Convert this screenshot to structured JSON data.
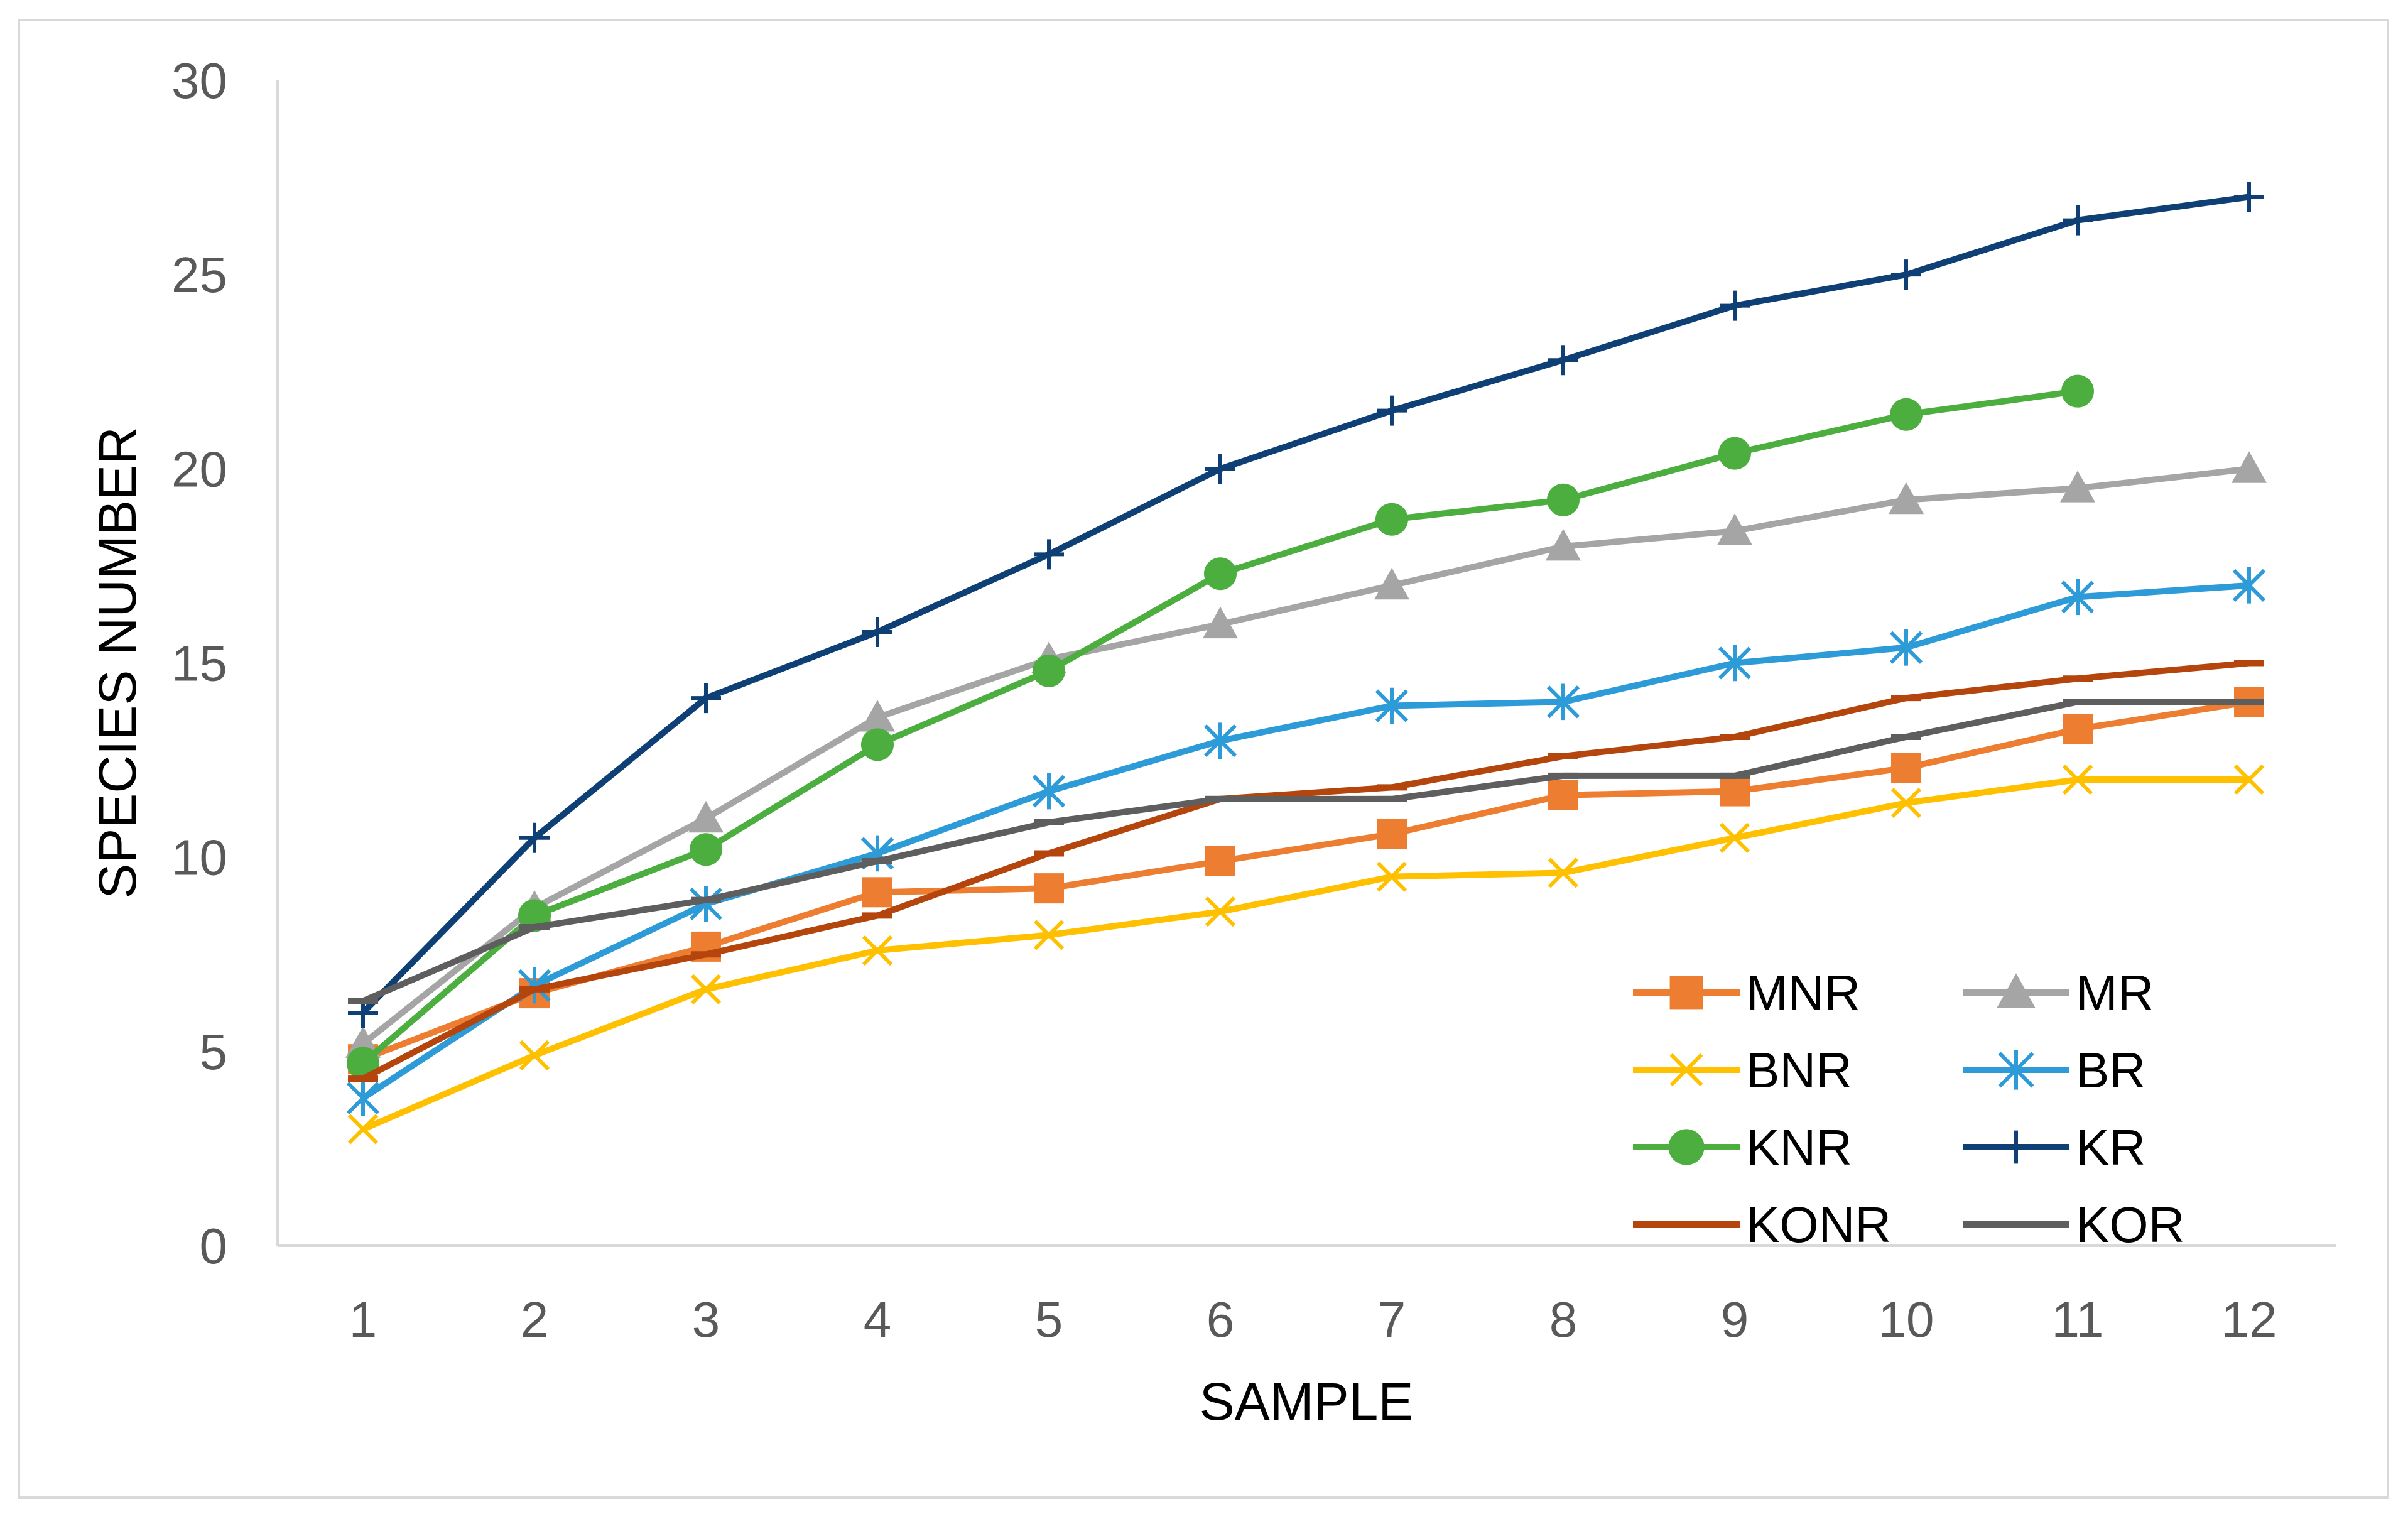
{
  "chart_data": {
    "type": "line",
    "title": "",
    "xlabel": "SAMPLE",
    "ylabel": "SPECIES NUMBER",
    "categories": [
      "1",
      "2",
      "3",
      "4",
      "5",
      "6",
      "7",
      "8",
      "9",
      "10",
      "11",
      "12"
    ],
    "ylim": [
      0,
      30
    ],
    "yticks": [
      "0",
      "5",
      "10",
      "15",
      "20",
      "25",
      "30"
    ],
    "grid": false,
    "legend_position": "bottom-right",
    "series": [
      {
        "name": "MNR",
        "color": "#ED7D31",
        "marker": "square",
        "values": [
          4.8,
          6.5,
          7.7,
          9.1,
          9.2,
          9.9,
          10.6,
          11.6,
          11.7,
          12.3,
          13.3,
          14.0
        ]
      },
      {
        "name": "MR",
        "color": "#A5A5A5",
        "marker": "triangle",
        "values": [
          5.2,
          8.7,
          11.0,
          13.6,
          15.1,
          16.0,
          17.0,
          18.0,
          18.4,
          19.2,
          19.5,
          20.0
        ]
      },
      {
        "name": "BNR",
        "color": "#FFC000",
        "marker": "x",
        "values": [
          3.0,
          4.9,
          6.6,
          7.6,
          8.0,
          8.6,
          9.5,
          9.6,
          10.5,
          11.4,
          12.0,
          12.0
        ]
      },
      {
        "name": "BR",
        "color": "#2E9BD9",
        "marker": "asterisk",
        "values": [
          3.8,
          6.7,
          8.8,
          10.1,
          11.7,
          13.0,
          13.9,
          14.0,
          15.0,
          15.4,
          16.7,
          17.0
        ]
      },
      {
        "name": "KNR",
        "color": "#4BAE3F",
        "marker": "circle",
        "values": [
          4.7,
          8.5,
          10.2,
          12.9,
          14.8,
          17.3,
          18.7,
          19.2,
          20.4,
          21.4,
          22.0,
          null
        ]
      },
      {
        "name": "KR",
        "color": "#0E3F75",
        "marker": "plus",
        "values": [
          6.0,
          10.5,
          14.1,
          15.8,
          17.8,
          20.0,
          21.5,
          22.8,
          24.2,
          25.0,
          26.4,
          27.0
        ]
      },
      {
        "name": "KONR",
        "color": "#B4450D",
        "marker": "dash",
        "values": [
          4.3,
          6.6,
          7.5,
          8.5,
          10.1,
          11.5,
          11.8,
          12.6,
          13.1,
          14.1,
          14.6,
          15.0
        ]
      },
      {
        "name": "KOR",
        "color": "#5E5E5E",
        "marker": "dash",
        "values": [
          6.3,
          8.2,
          8.9,
          9.9,
          10.9,
          11.5,
          11.5,
          12.1,
          12.1,
          13.1,
          14.0,
          14.0
        ]
      }
    ]
  }
}
